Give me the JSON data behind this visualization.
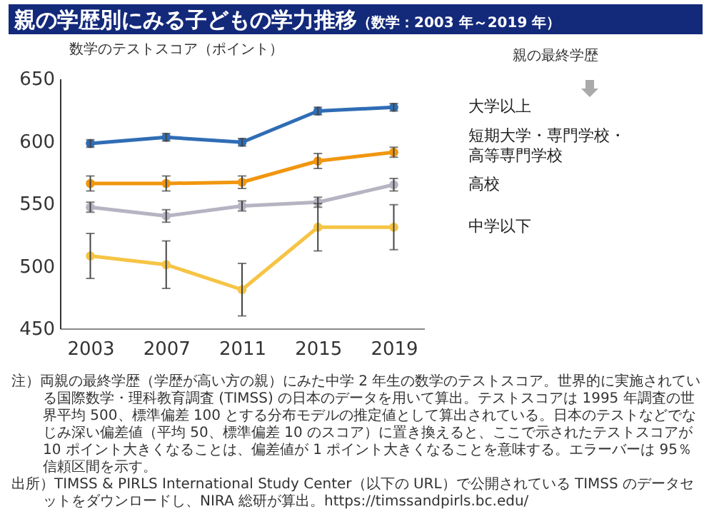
{
  "chart_data": {
    "type": "line",
    "title": "親の学歴別にみる子どもの学力推移",
    "subtitle": "（数学：2003 年～2019 年）",
    "ylabel": "数学のテストスコア（ポイント）",
    "legend_title": "親の最終学歴",
    "categories": [
      "2003",
      "2007",
      "2011",
      "2015",
      "2019"
    ],
    "ylim": [
      450,
      650
    ],
    "yticks": [
      450,
      500,
      550,
      600,
      650
    ],
    "grid": false,
    "legend": false,
    "marker": "circle",
    "line_style": "solid",
    "series": [
      {
        "name": "大学以上",
        "color": "#2f6db5",
        "values": [
          598,
          603,
          599,
          624,
          627
        ],
        "errors": [
          3,
          3,
          3,
          3,
          3
        ]
      },
      {
        "name": "短期大学・専門学校・高等専門学校",
        "color": "#f0960f",
        "values": [
          566,
          566,
          567,
          584,
          591
        ],
        "errors": [
          6,
          6,
          5,
          6,
          4
        ]
      },
      {
        "name": "高校",
        "color": "#b5b4c2",
        "values": [
          547,
          540,
          548,
          551,
          565
        ],
        "errors": [
          4,
          5,
          4,
          4,
          5
        ]
      },
      {
        "name": "中学以下",
        "color": "#f6c445",
        "values": [
          508,
          501,
          481,
          531,
          531
        ],
        "errors": [
          18,
          19,
          21,
          19,
          18
        ]
      }
    ],
    "annotations": [
      "注）両親の最終学歴（学歴が高い方の親）にみた中学 2 年生の数学のテストスコア。世界的に実施されている国際数学・理科教育調査 (TIMSS) の日本のデータを用いて算出。テストスコアは 1995 年調査の世界平均 500、標準偏差 100 とする分布モデルの推定値として算出されている。日本のテストなどでなじみ深い偏差値（平均 50、標準偏差 10 のスコア）に置き換えると、ここで示されたテストスコアが 10 ポイント大きくなることは、偏差値が 1 ポイント大きくなることを意味する。エラーバーは 95％信頼区間を示す。",
      "出所）TIMSS & PIRLS International Study Center（以下の URL）で公開されている TIMSS のデータセットをダウンロードし、NIRA 総研が算出。https://timssandpirls.bc.edu/"
    ]
  }
}
